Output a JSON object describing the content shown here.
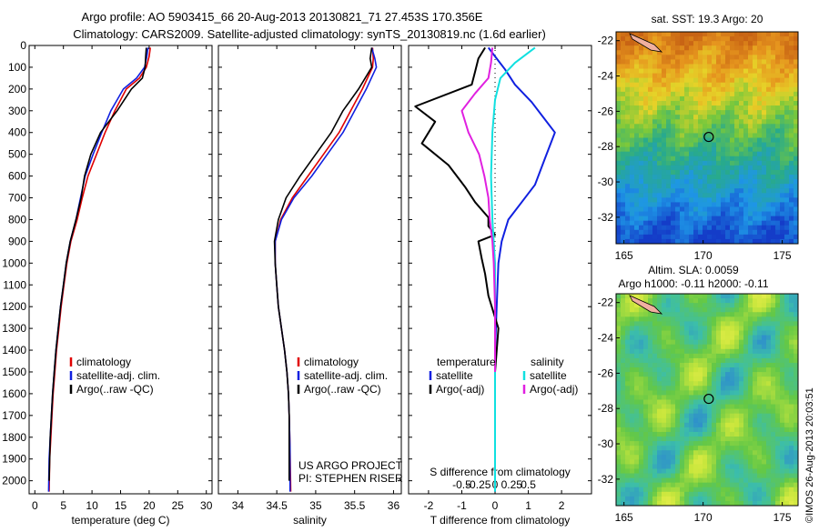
{
  "header": {
    "line1": "Argo profile: AO 5903415_66 20-Aug-2013 20130821_71 27.453S 170.356E",
    "line2": "Climatology: CARS2009. Satellite-adjusted climatology: synTS_20130819.nc (1.6d earlier)"
  },
  "colors": {
    "climatology": "#e00000",
    "satellite": "#1020e0",
    "argo": "#000000",
    "sal_satellite": "#10e0e0",
    "sal_argo": "#e020e0",
    "land": "#f0b0a0"
  },
  "chart_data": [
    {
      "type": "line",
      "name": "temperature-profile",
      "xlabel": "temperature (deg C)",
      "xlim": [
        -1,
        31
      ],
      "xticks": [
        0,
        5,
        10,
        15,
        20,
        25,
        30
      ],
      "ylim": [
        0,
        2060
      ],
      "yticks": [
        0,
        100,
        200,
        300,
        400,
        500,
        600,
        700,
        800,
        900,
        1000,
        1100,
        1200,
        1300,
        1400,
        1500,
        1600,
        1700,
        1800,
        1900,
        2000
      ],
      "legend": [
        "climatology",
        "satellite-adj. clim.",
        "Argo(..raw -QC)"
      ],
      "legend_position": "lower-right",
      "series": [
        {
          "name": "climatology",
          "color_key": "climatology",
          "x": [
            20.2,
            20.0,
            19.5,
            18.3,
            16.0,
            14.0,
            12.3,
            10.8,
            9.3,
            8.3,
            7.4,
            6.3,
            5.6,
            5.1,
            4.6,
            4.2,
            3.8,
            3.5,
            3.2,
            3.0,
            2.8,
            2.6,
            2.5
          ],
          "y": [
            10,
            50,
            100,
            150,
            200,
            300,
            400,
            500,
            600,
            700,
            800,
            900,
            1000,
            1100,
            1200,
            1300,
            1400,
            1500,
            1600,
            1700,
            1800,
            1900,
            2050
          ]
        },
        {
          "name": "satellite-adj. clim.",
          "color_key": "satellite",
          "x": [
            19.8,
            19.6,
            19.2,
            17.8,
            15.5,
            13.3,
            11.7,
            10.2,
            8.8,
            8.0,
            7.2,
            6.2,
            5.5,
            5.0,
            4.5,
            4.1,
            3.7,
            3.4,
            3.1,
            2.9,
            2.7,
            2.5,
            2.4
          ],
          "y": [
            10,
            50,
            100,
            150,
            200,
            300,
            400,
            500,
            600,
            700,
            800,
            900,
            1000,
            1100,
            1200,
            1300,
            1400,
            1500,
            1600,
            1700,
            1800,
            1900,
            2050
          ]
        },
        {
          "name": "Argo(..raw -QC)",
          "color_key": "argo",
          "x": [
            19.5,
            19.4,
            19.3,
            18.8,
            16.9,
            14.4,
            11.5,
            9.8,
            8.7,
            8.1,
            7.2,
            6.2,
            5.5,
            5.0,
            4.5,
            4.1,
            3.7,
            3.4,
            3.1,
            2.9,
            2.7,
            2.5
          ],
          "y": [
            10,
            50,
            100,
            150,
            200,
            300,
            400,
            500,
            600,
            700,
            800,
            900,
            1000,
            1100,
            1200,
            1300,
            1400,
            1500,
            1600,
            1700,
            1800,
            2000
          ]
        }
      ]
    },
    {
      "type": "line",
      "name": "salinity-profile",
      "xlabel": "salinity",
      "xlim": [
        33.75,
        36.1
      ],
      "xticks": [
        34,
        34.5,
        35,
        35.5,
        36
      ],
      "xticklabels": [
        "34",
        "34.5",
        "35",
        "35.5",
        "36"
      ],
      "ylim": [
        0,
        2060
      ],
      "legend": [
        "climatology",
        "satellite-adj. clim.",
        "Argo(..raw -QC)"
      ],
      "legend_position": "lower-right",
      "annotation": [
        "US ARGO PROJECT",
        "PI: STEPHEN RISER"
      ],
      "series": [
        {
          "name": "climatology",
          "color_key": "climatology",
          "x": [
            35.73,
            35.74,
            35.73,
            35.6,
            35.45,
            35.3,
            35.1,
            34.9,
            34.7,
            34.55,
            34.48,
            34.48,
            34.5,
            34.52,
            34.56,
            34.6,
            34.63,
            34.65,
            34.66,
            34.67,
            34.68
          ],
          "y": [
            10,
            60,
            100,
            200,
            300,
            400,
            500,
            600,
            700,
            800,
            900,
            1000,
            1100,
            1200,
            1300,
            1400,
            1500,
            1600,
            1700,
            1850,
            2050
          ]
        },
        {
          "name": "satellite-adj. clim.",
          "color_key": "satellite",
          "x": [
            35.72,
            35.76,
            35.78,
            35.65,
            35.5,
            35.35,
            35.15,
            34.95,
            34.72,
            34.56,
            34.48,
            34.48,
            34.5,
            34.52,
            34.56,
            34.6,
            34.63,
            34.65,
            34.66,
            34.67,
            34.67
          ],
          "y": [
            10,
            60,
            100,
            200,
            300,
            400,
            500,
            600,
            700,
            800,
            900,
            1000,
            1100,
            1200,
            1300,
            1400,
            1500,
            1600,
            1700,
            1850,
            2050
          ]
        },
        {
          "name": "Argo(..raw -QC)",
          "color_key": "argo",
          "x": [
            35.72,
            35.7,
            35.72,
            35.55,
            35.35,
            35.2,
            35.0,
            34.8,
            34.62,
            34.52,
            34.47,
            34.48,
            34.5,
            34.52,
            34.56,
            34.6,
            34.63,
            34.65,
            34.66,
            34.66
          ],
          "y": [
            10,
            60,
            100,
            200,
            300,
            400,
            500,
            600,
            700,
            800,
            900,
            1000,
            1100,
            1200,
            1300,
            1400,
            1500,
            1600,
            1700,
            2000
          ]
        }
      ]
    },
    {
      "type": "line",
      "name": "difference-profile",
      "xlabel": "T difference from climatology",
      "xlabel_top": "S difference from climatology",
      "xlim": [
        -2.6,
        2.9
      ],
      "xticks": [
        -2,
        -1,
        0,
        1,
        2
      ],
      "xticks_S": [
        -0.5,
        -0.25,
        0,
        0.25,
        0.5
      ],
      "xticklabels_S": [
        "-0.5",
        "-0.25",
        "0",
        "0.25",
        "0.5"
      ],
      "ylim": [
        0,
        2060
      ],
      "legend": {
        "temperature": {
          "title": "temperature",
          "items": [
            "satellite",
            "Argo(-adj)"
          ]
        },
        "salinity": {
          "title": "salinity",
          "items": [
            "satellite",
            "Argo(-adj)"
          ]
        }
      },
      "series": [
        {
          "name": "satellite",
          "group": "temperature",
          "color_key": "satellite",
          "x": [
            -0.2,
            0.05,
            0.3,
            0.6,
            1.1,
            1.8,
            1.5,
            1.2,
            0.8,
            0.4,
            0.2,
            0.1,
            0.05,
            0.0,
            0.0,
            0.0,
            0.0,
            0.0
          ],
          "y": [
            10,
            60,
            110,
            180,
            260,
            400,
            520,
            640,
            720,
            800,
            900,
            1000,
            1200,
            1400,
            1600,
            1800,
            1950,
            2050
          ]
        },
        {
          "name": "Argo(-adj)",
          "group": "temperature",
          "color_key": "argo",
          "x": [
            -0.3,
            -0.5,
            -0.6,
            -0.7,
            -2.4,
            -1.8,
            -2.2,
            -1.4,
            -0.9,
            -0.6,
            -0.2,
            -0.2,
            0.0,
            -0.5,
            -0.4,
            -0.3,
            -0.2,
            0.1,
            0.0,
            0.0,
            0.0,
            0.0
          ],
          "y": [
            10,
            60,
            120,
            180,
            280,
            350,
            450,
            550,
            650,
            720,
            790,
            830,
            870,
            900,
            980,
            1050,
            1150,
            1300,
            1500,
            1700,
            1900,
            2000
          ]
        },
        {
          "name": "satellite",
          "group": "salinity",
          "color_key": "sal_satellite",
          "x": [
            0.3,
            0.15,
            0.04,
            0.0,
            -0.02,
            -0.03,
            -0.02,
            0.0,
            0.0,
            0.0,
            0.0,
            0.0
          ],
          "y": [
            10,
            80,
            150,
            250,
            400,
            600,
            800,
            1000,
            1200,
            1500,
            1800,
            2050
          ]
        },
        {
          "name": "Argo(-adj)",
          "group": "salinity",
          "color_key": "sal_argo",
          "x": [
            -0.02,
            -0.03,
            -0.05,
            -0.15,
            -0.25,
            -0.2,
            -0.12,
            -0.08,
            -0.05,
            -0.04,
            -0.02,
            -0.01,
            0.0,
            0.0
          ],
          "y": [
            10,
            80,
            150,
            220,
            300,
            400,
            500,
            600,
            700,
            800,
            900,
            1000,
            1200,
            1500
          ]
        }
      ]
    },
    {
      "type": "heatmap",
      "name": "sst-map",
      "title": "sat. SST: 19.3 Argo: 20",
      "xlim": [
        164.5,
        176
      ],
      "ylim": [
        -33.5,
        -21.5
      ],
      "xticks": [
        165,
        170,
        175
      ],
      "yticks": [
        -22,
        -24,
        -26,
        -28,
        -30,
        -32
      ],
      "marker": {
        "lon": 170.356,
        "lat": -27.453
      }
    },
    {
      "type": "heatmap",
      "name": "sla-map",
      "title_lines": [
        "Altim. SLA: 0.0059",
        "Argo h1000: -0.11 h2000: -0.11"
      ],
      "xlim": [
        164.5,
        176
      ],
      "ylim": [
        -33.5,
        -21.5
      ],
      "xticks": [
        165,
        170,
        175
      ],
      "yticks": [
        -22,
        -24,
        -26,
        -28,
        -30,
        -32
      ],
      "marker": {
        "lon": 170.356,
        "lat": -27.453
      }
    }
  ],
  "footer": {
    "stamp": "©IMOS 26-Aug-2013 20:03:51"
  }
}
